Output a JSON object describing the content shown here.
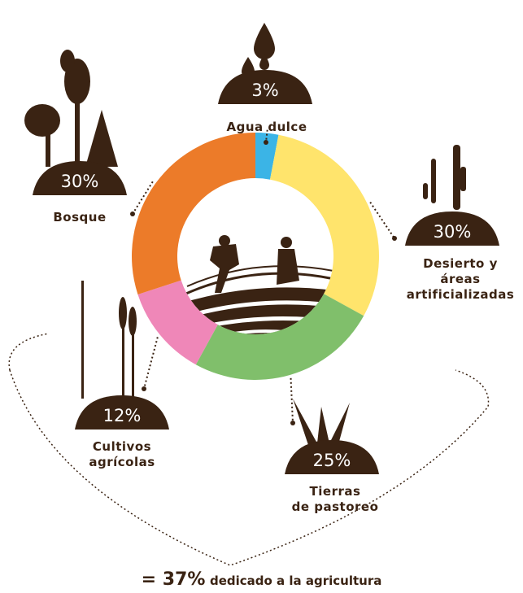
{
  "chart_data": {
    "type": "donut",
    "categories": [
      "Agua dulce",
      "Desierto y áreas\nartificializadas",
      "Tierras\nde pastoreo",
      "Cultivos\nagrícolas",
      "Bosque"
    ],
    "values": [
      3,
      30,
      25,
      12,
      30
    ],
    "value_labels": [
      "3%",
      "30%",
      "25%",
      "12%",
      "30%"
    ],
    "colors": [
      "#3bb4e6",
      "#ffe46c",
      "#80bf6b",
      "#ef87b8",
      "#ec7b29"
    ]
  },
  "annotation": [
    "= 37%",
    "dedicado a la agricultura"
  ]
}
